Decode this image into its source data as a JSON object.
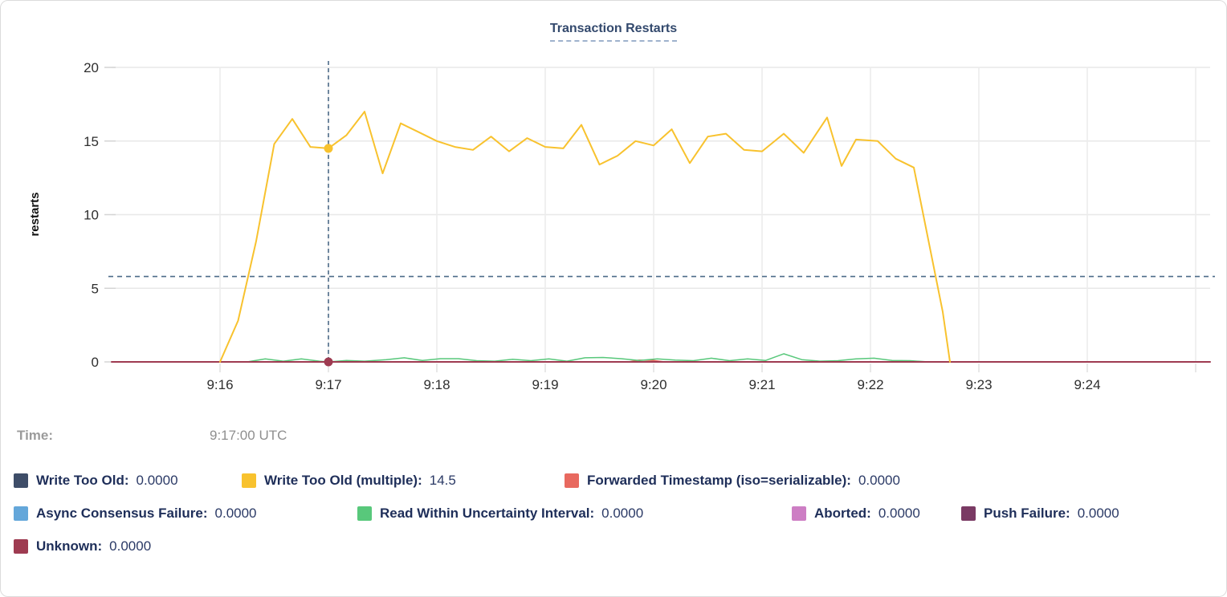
{
  "time_row": {
    "label": "Time:",
    "value": "9:17:00 UTC"
  },
  "colors": {
    "crosshair": "#4c6b88",
    "reference_dash": "#4c6b88",
    "grid": "#ececec",
    "title_text": "#33496d",
    "legend_text": "#1e2e59"
  },
  "legend": {
    "rows": [
      [
        {
          "label": "Write Too Old:",
          "value": "0.0000",
          "color": "#3e4d68"
        },
        {
          "label": "Write Too Old (multiple):",
          "value": "14.5",
          "color": "#f8c22e"
        },
        {
          "label": "Forwarded Timestamp (iso=serializable):",
          "value": "0.0000",
          "color": "#e8695f"
        }
      ],
      [
        {
          "label": "Async Consensus Failure:",
          "value": "0.0000",
          "color": "#64a7da"
        },
        {
          "label": "Read Within Uncertainty Interval:",
          "value": "0.0000",
          "color": "#58c87b"
        },
        {
          "label": "Aborted:",
          "value": "0.0000",
          "color": "#cd7ec4"
        },
        {
          "label": "Push Failure:",
          "value": "0.0000",
          "color": "#7a3a64"
        }
      ],
      [
        {
          "label": "Unknown:",
          "value": "0.0000",
          "color": "#9e3b51"
        }
      ]
    ]
  },
  "chart_data": {
    "type": "line",
    "title": "Transaction Restarts",
    "xlabel": "",
    "ylabel": "restarts",
    "ylim": [
      0,
      20
    ],
    "y_ticks": [
      0,
      5,
      10,
      15,
      20
    ],
    "x_tick_labels": [
      "9:16",
      "9:17",
      "9:18",
      "9:19",
      "9:20",
      "9:21",
      "9:22",
      "9:23",
      "9:24"
    ],
    "x_tick_seconds": [
      60,
      120,
      180,
      240,
      300,
      360,
      420,
      480,
      540
    ],
    "x_extra_gridline_seconds": [
      600
    ],
    "x_domain_seconds": [
      0,
      608
    ],
    "grid": true,
    "legend_position": "bottom",
    "reference_line_value": 5.8,
    "hover_crosshair": {
      "x_seconds": 120,
      "time_label": "9:17:00 UTC",
      "points": [
        {
          "series": "Write Too Old (multiple)",
          "value": 14.5
        },
        {
          "series": "Unknown",
          "value": 0
        }
      ]
    },
    "series": [
      {
        "name": "Write Too Old",
        "color": "#3e4d68",
        "width": 1,
        "z": 1,
        "points": [
          [
            60,
            0
          ],
          [
            464,
            0
          ]
        ]
      },
      {
        "name": "Async Consensus Failure",
        "color": "#64a7da",
        "width": 1,
        "z": 1,
        "points": [
          [
            60,
            0
          ],
          [
            464,
            0
          ]
        ]
      },
      {
        "name": "Aborted",
        "color": "#cd7ec4",
        "width": 1,
        "z": 1,
        "points": [
          [
            60,
            0
          ],
          [
            464,
            0
          ]
        ]
      },
      {
        "name": "Push Failure",
        "color": "#7a3a64",
        "width": 1,
        "z": 1,
        "points": [
          [
            60,
            0
          ],
          [
            464,
            0
          ]
        ]
      },
      {
        "name": "Forwarded Timestamp (iso=serializable)",
        "color": "#e8695f",
        "width": 1.5,
        "z": 2,
        "points": [
          [
            60,
            0
          ],
          [
            286,
            0
          ],
          [
            292,
            0.12
          ],
          [
            300,
            0.1
          ],
          [
            306,
            0
          ],
          [
            464,
            0
          ]
        ]
      },
      {
        "name": "Read Within Uncertainty Interval",
        "color": "#58c87b",
        "width": 1.5,
        "z": 3,
        "points": [
          [
            75,
            0
          ],
          [
            85,
            0.2
          ],
          [
            95,
            0.05
          ],
          [
            105,
            0.2
          ],
          [
            115,
            0.05
          ],
          [
            120,
            0
          ],
          [
            130,
            0.1
          ],
          [
            140,
            0.05
          ],
          [
            152,
            0.15
          ],
          [
            162,
            0.28
          ],
          [
            172,
            0.1
          ],
          [
            182,
            0.22
          ],
          [
            192,
            0.22
          ],
          [
            202,
            0.08
          ],
          [
            212,
            0.05
          ],
          [
            222,
            0.18
          ],
          [
            232,
            0.08
          ],
          [
            242,
            0.2
          ],
          [
            252,
            0.05
          ],
          [
            262,
            0.28
          ],
          [
            272,
            0.3
          ],
          [
            282,
            0.22
          ],
          [
            292,
            0.1
          ],
          [
            302,
            0.2
          ],
          [
            312,
            0.12
          ],
          [
            322,
            0.08
          ],
          [
            332,
            0.25
          ],
          [
            342,
            0.08
          ],
          [
            352,
            0.2
          ],
          [
            362,
            0.1
          ],
          [
            372,
            0.55
          ],
          [
            382,
            0.15
          ],
          [
            392,
            0.05
          ],
          [
            402,
            0.08
          ],
          [
            412,
            0.2
          ],
          [
            422,
            0.25
          ],
          [
            432,
            0.1
          ],
          [
            442,
            0.08
          ],
          [
            452,
            0
          ]
        ]
      },
      {
        "name": "Unknown",
        "color": "#9e3b51",
        "width": 2,
        "z": 4,
        "points": [
          [
            0,
            0
          ],
          [
            608,
            0
          ]
        ]
      },
      {
        "name": "Write Too Old (multiple)",
        "color": "#f8c22e",
        "width": 2,
        "z": 5,
        "points": [
          [
            60,
            0
          ],
          [
            70,
            2.8
          ],
          [
            80,
            8.2
          ],
          [
            90,
            14.8
          ],
          [
            100,
            16.5
          ],
          [
            110,
            14.6
          ],
          [
            120,
            14.5
          ],
          [
            130,
            15.4
          ],
          [
            140,
            17.0
          ],
          [
            150,
            12.8
          ],
          [
            160,
            16.2
          ],
          [
            170,
            15.6
          ],
          [
            180,
            15.0
          ],
          [
            190,
            14.6
          ],
          [
            200,
            14.4
          ],
          [
            210,
            15.3
          ],
          [
            220,
            14.3
          ],
          [
            230,
            15.2
          ],
          [
            240,
            14.6
          ],
          [
            250,
            14.5
          ],
          [
            260,
            16.1
          ],
          [
            270,
            13.4
          ],
          [
            280,
            14.0
          ],
          [
            290,
            15.0
          ],
          [
            300,
            14.7
          ],
          [
            310,
            15.8
          ],
          [
            320,
            13.5
          ],
          [
            330,
            15.3
          ],
          [
            340,
            15.5
          ],
          [
            350,
            14.4
          ],
          [
            360,
            14.3
          ],
          [
            372,
            15.5
          ],
          [
            383,
            14.2
          ],
          [
            396,
            16.6
          ],
          [
            404,
            13.3
          ],
          [
            412,
            15.1
          ],
          [
            424,
            15.0
          ],
          [
            434,
            13.8
          ],
          [
            444,
            13.2
          ],
          [
            460,
            3.4
          ],
          [
            464,
            0
          ]
        ]
      }
    ]
  }
}
